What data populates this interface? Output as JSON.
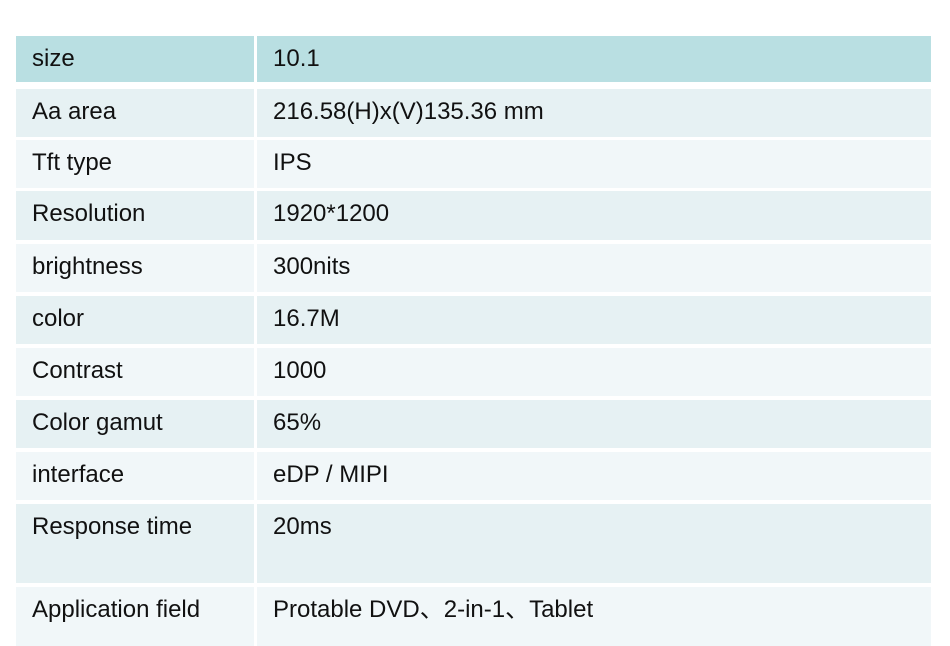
{
  "colors": {
    "header": "#b9dfe2",
    "row_a": "#e6f1f3",
    "row_b": "#f1f7f9"
  },
  "spec_table": {
    "rows": [
      {
        "label": "size",
        "value": "10.1"
      },
      {
        "label": "Aa area",
        "value": "216.58(H)x(V)135.36 mm"
      },
      {
        "label": "Tft type",
        "value": "IPS"
      },
      {
        "label": "Resolution",
        "value": "1920*1200"
      },
      {
        "label": "brightness",
        "value": "300nits"
      },
      {
        "label": "color",
        "value": "16.7M"
      },
      {
        "label": "Contrast",
        "value": "1000"
      },
      {
        "label": "Color gamut",
        "value": "65%"
      },
      {
        "label": "interface",
        "value": "eDP / MIPI"
      },
      {
        "label": "Response time",
        "value": "20ms"
      },
      {
        "label": "Application field",
        "value": "Protable DVD、2-in-1、Tablet"
      }
    ]
  }
}
